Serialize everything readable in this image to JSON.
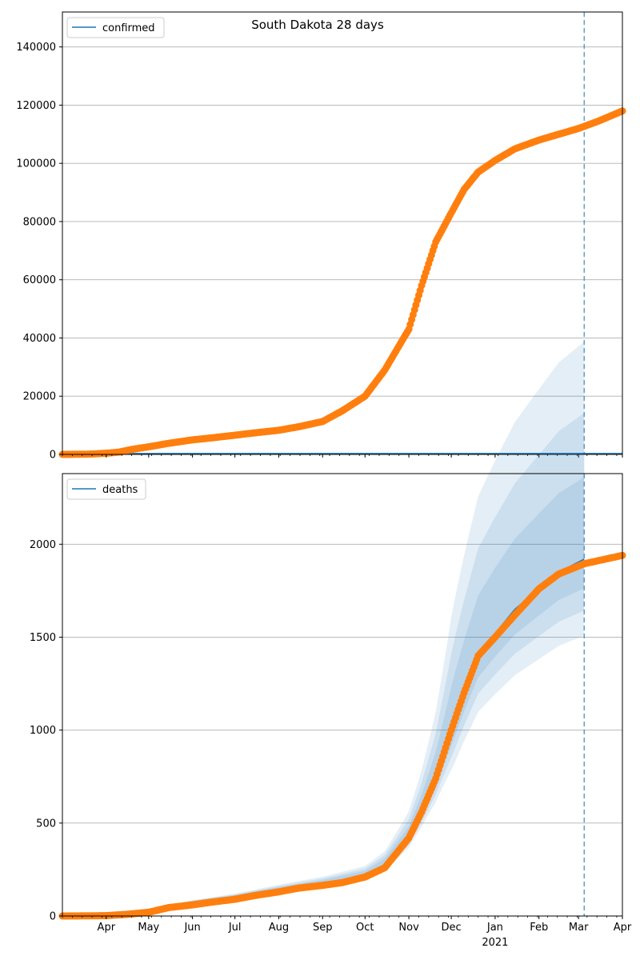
{
  "chart_data": [
    {
      "type": "scatter",
      "title": "South Dakota 28 days",
      "ylim": [
        0,
        152000
      ],
      "yticks": [
        0,
        20000,
        40000,
        60000,
        80000,
        100000,
        120000,
        140000
      ],
      "legend": {
        "entries": [
          "confirmed"
        ],
        "placement": "top-left"
      },
      "grid": "y",
      "vline_date": "2021-03-05",
      "series": [
        {
          "name": "confirmed",
          "kind": "line",
          "color": "#1f77b4",
          "x": [
            "2020-03-01",
            "2021-04-01"
          ],
          "y": [
            300,
            300
          ]
        },
        {
          "kind": "points",
          "color": "#ff7f0e",
          "x": [
            "2020-03-01",
            "2020-03-20",
            "2020-04-01",
            "2020-04-10",
            "2020-04-20",
            "2020-05-01",
            "2020-05-15",
            "2020-06-01",
            "2020-06-15",
            "2020-07-01",
            "2020-07-15",
            "2020-08-01",
            "2020-08-15",
            "2020-09-01",
            "2020-09-15",
            "2020-10-01",
            "2020-10-15",
            "2020-11-01",
            "2020-11-10",
            "2020-11-20",
            "2020-12-01",
            "2020-12-10",
            "2020-12-20",
            "2021-01-01",
            "2021-01-15",
            "2021-02-01",
            "2021-02-15",
            "2021-03-01",
            "2021-03-15",
            "2021-04-01"
          ],
          "y": [
            0,
            100,
            400,
            800,
            1800,
            2600,
            3800,
            5000,
            5700,
            6600,
            7400,
            8300,
            9500,
            11300,
            15000,
            20000,
            29000,
            43000,
            58000,
            73000,
            83000,
            91000,
            97000,
            101000,
            105000,
            108000,
            110000,
            112000,
            114500,
            118000
          ]
        }
      ]
    },
    {
      "type": "scatter",
      "ylim": [
        0,
        2380
      ],
      "yticks": [
        0,
        500,
        1000,
        1500,
        2000
      ],
      "legend": {
        "entries": [
          "deaths"
        ],
        "placement": "top-left"
      },
      "grid": "y",
      "vline_date": "2021-03-05",
      "band_color": "#1f77b4",
      "band_offsets": [
        0.6,
        0.4,
        0.22
      ],
      "median": {
        "x": [
          "2020-03-01",
          "2020-04-01",
          "2020-05-01",
          "2020-06-01",
          "2020-07-01",
          "2020-08-01",
          "2020-09-01",
          "2020-10-01",
          "2020-10-15",
          "2020-11-01",
          "2020-11-10",
          "2020-11-20",
          "2020-12-01",
          "2020-12-10",
          "2020-12-20",
          "2021-01-01",
          "2021-01-15",
          "2021-02-01",
          "2021-02-15",
          "2021-03-05"
        ],
        "y": [
          0,
          2,
          20,
          60,
          90,
          130,
          165,
          210,
          270,
          420,
          560,
          740,
          1000,
          1200,
          1400,
          1520,
          1650,
          1760,
          1850,
          1920
        ]
      },
      "series": [
        {
          "name": "deaths",
          "kind": "line",
          "color": "#1f77b4",
          "x": [
            "2020-03-01",
            "2020-04-01",
            "2020-05-01",
            "2020-06-01",
            "2020-07-01",
            "2020-08-01",
            "2020-09-01",
            "2020-10-01",
            "2020-10-15",
            "2020-11-01",
            "2020-11-10",
            "2020-11-20",
            "2020-12-01",
            "2020-12-10",
            "2020-12-20",
            "2021-01-01",
            "2021-01-15",
            "2021-02-01",
            "2021-02-15",
            "2021-03-05"
          ],
          "y": [
            0,
            2,
            20,
            60,
            90,
            130,
            165,
            210,
            270,
            420,
            560,
            740,
            1000,
            1200,
            1400,
            1520,
            1650,
            1760,
            1850,
            1920
          ]
        },
        {
          "kind": "points",
          "color": "#ff7f0e",
          "x": [
            "2020-03-01",
            "2020-03-20",
            "2020-04-01",
            "2020-04-15",
            "2020-05-01",
            "2020-05-15",
            "2020-06-01",
            "2020-06-15",
            "2020-07-01",
            "2020-07-15",
            "2020-08-01",
            "2020-08-15",
            "2020-09-01",
            "2020-09-15",
            "2020-10-01",
            "2020-10-15",
            "2020-11-01",
            "2020-11-10",
            "2020-11-20",
            "2020-12-01",
            "2020-12-10",
            "2020-12-20",
            "2021-01-01",
            "2021-01-15",
            "2021-02-01",
            "2021-02-15",
            "2021-03-05",
            "2021-03-20",
            "2021-04-01"
          ],
          "y": [
            0,
            1,
            2,
            8,
            20,
            45,
            60,
            75,
            90,
            110,
            130,
            150,
            165,
            180,
            210,
            260,
            420,
            560,
            740,
            1000,
            1200,
            1400,
            1500,
            1620,
            1760,
            1840,
            1895,
            1920,
            1940
          ]
        }
      ]
    }
  ],
  "x_axis": {
    "start": "2020-03-01",
    "end": "2021-04-01",
    "ticks": [
      {
        "date": "2020-04-01",
        "label": "Apr"
      },
      {
        "date": "2020-05-01",
        "label": "May"
      },
      {
        "date": "2020-06-01",
        "label": "Jun"
      },
      {
        "date": "2020-07-01",
        "label": "Jul"
      },
      {
        "date": "2020-08-01",
        "label": "Aug"
      },
      {
        "date": "2020-09-01",
        "label": "Sep"
      },
      {
        "date": "2020-10-01",
        "label": "Oct"
      },
      {
        "date": "2020-11-01",
        "label": "Nov"
      },
      {
        "date": "2020-12-01",
        "label": "Dec"
      },
      {
        "date": "2021-01-01",
        "label": "Jan"
      },
      {
        "date": "2021-02-01",
        "label": "Feb"
      },
      {
        "date": "2021-03-01",
        "label": "Mar"
      },
      {
        "date": "2021-04-01",
        "label": "Apr"
      }
    ],
    "year_label": {
      "date": "2021-01-01",
      "label": "2021"
    }
  }
}
